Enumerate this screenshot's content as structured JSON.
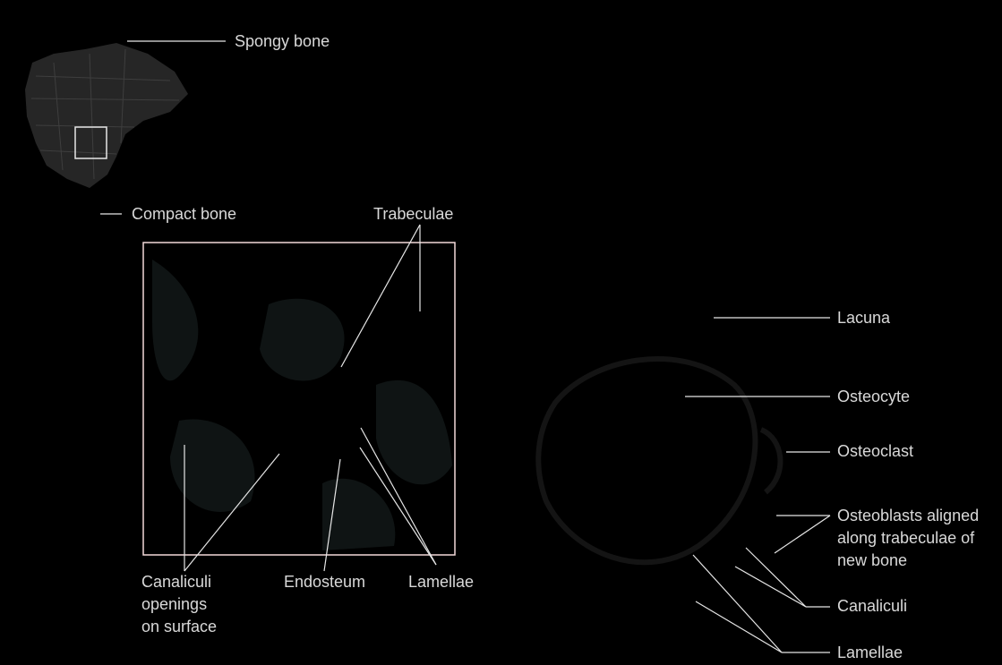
{
  "labels": {
    "spongy_bone": "Spongy bone",
    "compact_bone": "Compact bone",
    "trabeculae": "Trabeculae",
    "canaliculi_openings": [
      "Canaliculi",
      "openings",
      "on surface"
    ],
    "endosteum": "Endosteum",
    "lamellae_left": "Lamellae",
    "lacuna": "Lacuna",
    "osteocyte": "Osteocyte",
    "osteoclast": "Osteoclast",
    "osteoblasts": [
      "Osteoblasts aligned",
      "along trabeculae of",
      "new bone"
    ],
    "canaliculi_right": "Canaliculi",
    "lamellae_right": "Lamellae"
  },
  "colors": {
    "background": "#000000",
    "label_text": "#d9d9d9",
    "leader_line": "#e6e6e6",
    "inset_frame": "#f2d9d9"
  }
}
